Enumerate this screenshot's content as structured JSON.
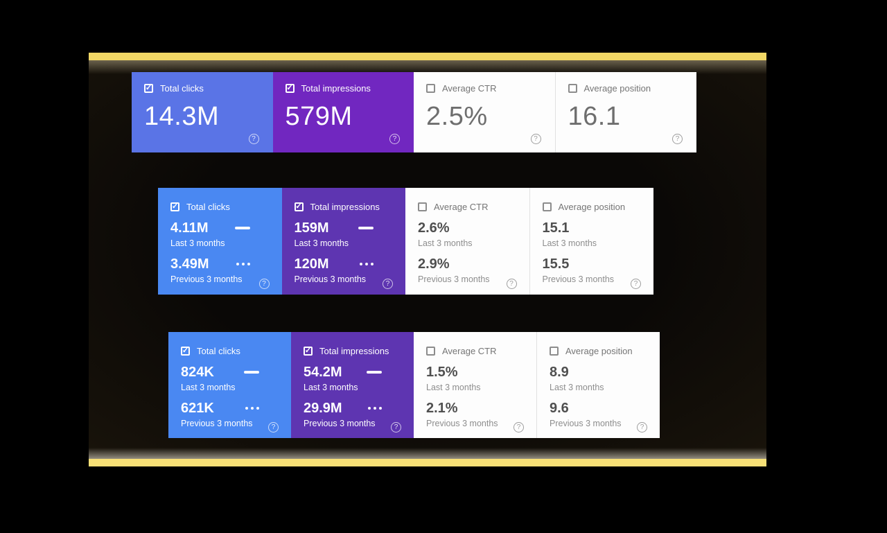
{
  "theme": {
    "page_bg": "#000000",
    "gold_bar_top": "#f1d765",
    "gold_bar_bottom": "#f7e077",
    "card_blue_summary": "#5a74e6",
    "card_purple_summary": "#7127c0",
    "card_blue": "#4a88f2",
    "card_purple": "#5e35b1",
    "card_white": "#fdfdfd",
    "white_card_divider": "#e1e1e1",
    "white_card_label": "#757575",
    "white_card_value": "#4f4f4f",
    "white_card_caption": "#8d8d8d",
    "summary_white_value": "#6e6e6e"
  },
  "icons": {
    "checked_checkbox": "checked-checkbox-icon",
    "unchecked_checkbox": "unchecked-checkbox-icon",
    "solid_line_legend": "solid-line-legend-icon",
    "dotted_line_legend": "dotted-line-legend-icon",
    "help": "help-circle-icon",
    "check_glyph": "✓",
    "help_glyph": "?"
  },
  "rows": [
    {
      "type": "summary",
      "cards": [
        {
          "label": "Total clicks",
          "checked": true,
          "variant": "blue",
          "value": "14.3M"
        },
        {
          "label": "Total impressions",
          "checked": true,
          "variant": "purple",
          "value": "579M"
        },
        {
          "label": "Average CTR",
          "checked": false,
          "variant": "white",
          "value": "2.5%"
        },
        {
          "label": "Average position",
          "checked": false,
          "variant": "white",
          "value": "16.1"
        }
      ]
    },
    {
      "type": "comparison",
      "cards": [
        {
          "label": "Total clicks",
          "checked": true,
          "variant": "blue",
          "current_value": "4.11M",
          "current_caption": "Last 3 months",
          "previous_value": "3.49M",
          "previous_caption": "Previous 3 months"
        },
        {
          "label": "Total impressions",
          "checked": true,
          "variant": "purple",
          "current_value": "159M",
          "current_caption": "Last 3 months",
          "previous_value": "120M",
          "previous_caption": "Previous 3 months"
        },
        {
          "label": "Average CTR",
          "checked": false,
          "variant": "white",
          "current_value": "2.6%",
          "current_caption": "Last 3 months",
          "previous_value": "2.9%",
          "previous_caption": "Previous 3 months"
        },
        {
          "label": "Average position",
          "checked": false,
          "variant": "white",
          "current_value": "15.1",
          "current_caption": "Last 3 months",
          "previous_value": "15.5",
          "previous_caption": "Previous 3 months"
        }
      ]
    },
    {
      "type": "comparison",
      "cards": [
        {
          "label": "Total clicks",
          "checked": true,
          "variant": "blue",
          "current_value": "824K",
          "current_caption": "Last 3 months",
          "previous_value": "621K",
          "previous_caption": "Previous 3 months"
        },
        {
          "label": "Total impressions",
          "checked": true,
          "variant": "purple",
          "current_value": "54.2M",
          "current_caption": "Last 3 months",
          "previous_value": "29.9M",
          "previous_caption": "Previous 3 months"
        },
        {
          "label": "Average CTR",
          "checked": false,
          "variant": "white",
          "current_value": "1.5%",
          "current_caption": "Last 3 months",
          "previous_value": "2.1%",
          "previous_caption": "Previous 3 months"
        },
        {
          "label": "Average position",
          "checked": false,
          "variant": "white",
          "current_value": "8.9",
          "current_caption": "Last 3 months",
          "previous_value": "9.6",
          "previous_caption": "Previous 3 months"
        }
      ]
    }
  ]
}
